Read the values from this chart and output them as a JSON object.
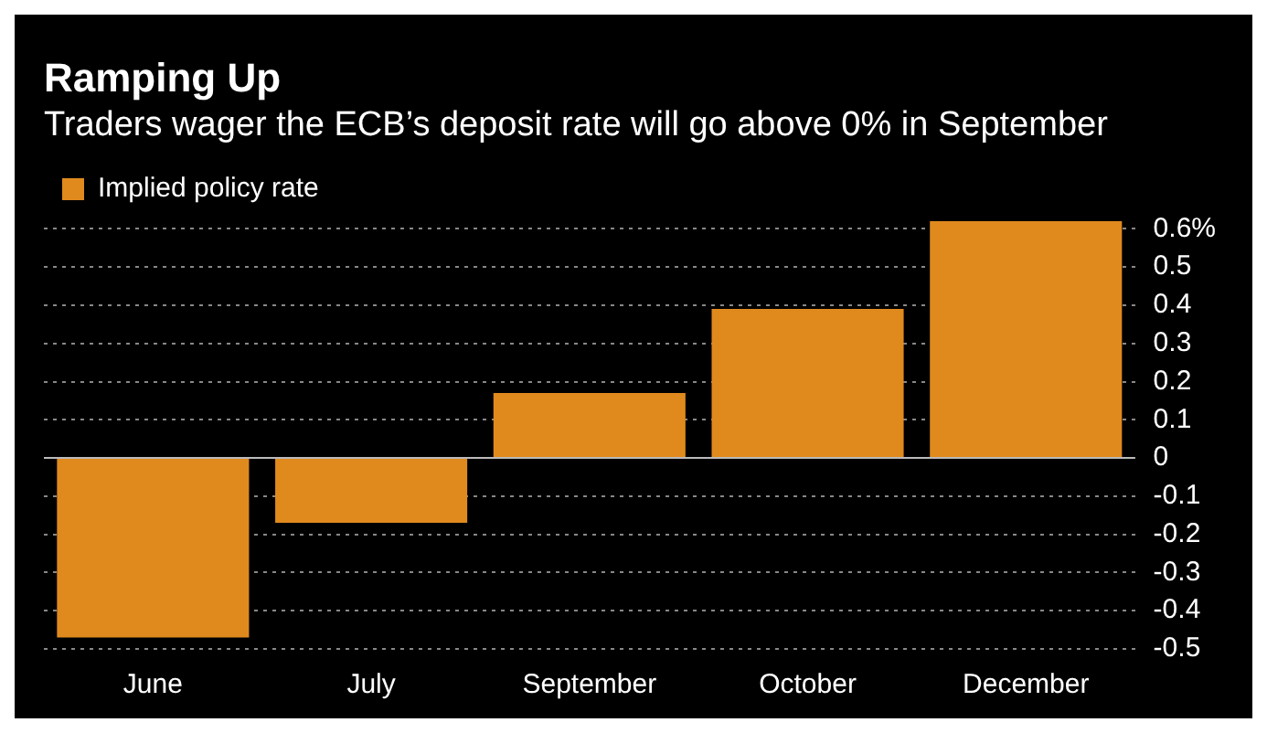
{
  "chart_data": {
    "type": "bar",
    "title": "Ramping Up",
    "subtitle": "Traders wager the ECB’s deposit rate will go above 0% in September",
    "categories": [
      "June",
      "July",
      "September",
      "October",
      "December"
    ],
    "series": [
      {
        "name": "Implied policy rate",
        "color": "#e08a1e",
        "values": [
          -0.47,
          -0.17,
          0.17,
          0.39,
          0.62
        ]
      }
    ],
    "ylim": [
      -0.5,
      0.62
    ],
    "yticks": [
      -0.5,
      -0.4,
      -0.3,
      -0.2,
      -0.1,
      0,
      0.1,
      0.2,
      0.3,
      0.4,
      0.5,
      {
        "value": 0.6,
        "label": "0.6%"
      }
    ],
    "grid": "y",
    "legend": "top left"
  }
}
